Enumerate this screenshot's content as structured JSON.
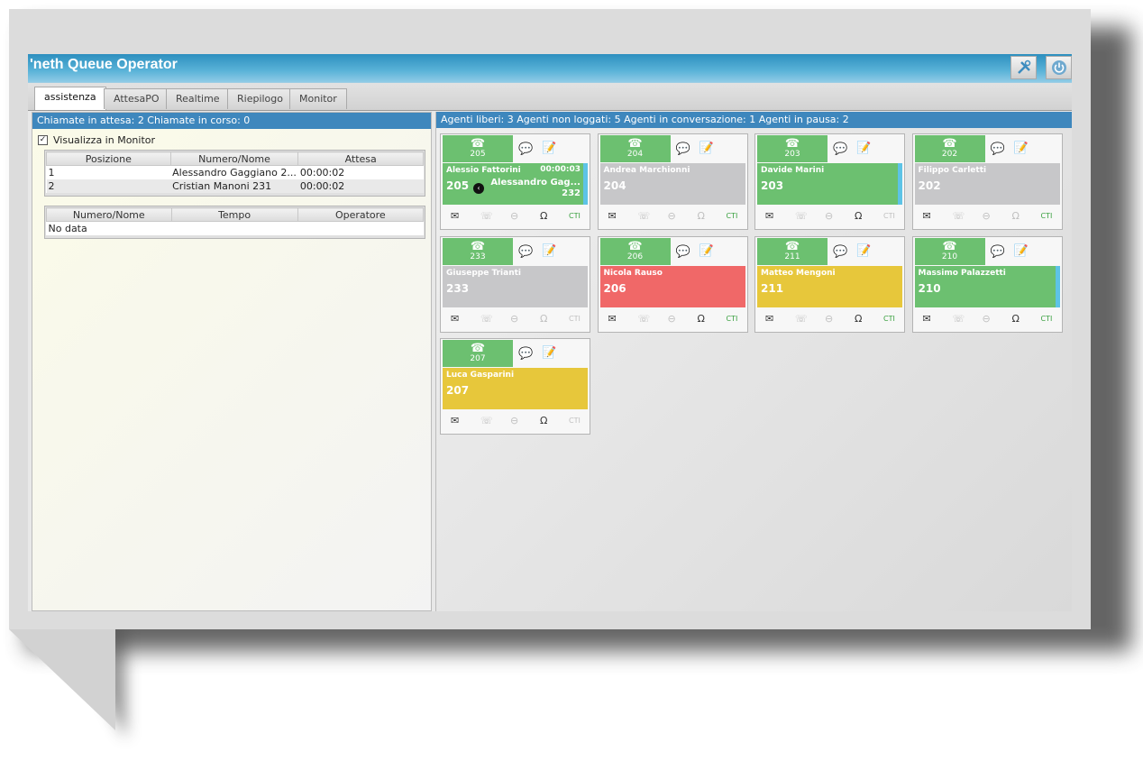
{
  "app": {
    "title": "'neth Queue Operator",
    "settings_icon": "tools-icon",
    "power_icon": "power-icon"
  },
  "tabs": [
    "assistenza",
    "AttesaPO",
    "Realtime",
    "Riepilogo",
    "Monitor"
  ],
  "left": {
    "header": "Chiamate in attesa: 2 Chiamate in corso: 0",
    "checkbox_label": "Visualizza in Monitor",
    "checkbox_checked": true,
    "waiting_table": {
      "columns": [
        "Posizione",
        "Numero/Nome",
        "Attesa"
      ],
      "rows": [
        [
          "1",
          "Alessandro Gaggiano 2...",
          "00:00:02"
        ],
        [
          "2",
          "Cristian Manoni 231",
          "00:00:02"
        ]
      ]
    },
    "calls_table": {
      "columns": [
        "Numero/Nome",
        "Tempo",
        "Operatore"
      ],
      "empty": "No data"
    }
  },
  "right": {
    "header": "Agenti liberi: 3 Agenti non loggati: 5 Agenti in conversazione: 1 Agenti in pausa: 2",
    "cti_label": "CTI",
    "agents": [
      {
        "ext": "205",
        "name": "Alessio Fattorini",
        "state": "green",
        "timer": "00:00:03",
        "peer_name": "Alessandro Gag...",
        "peer_ext": "232",
        "stripe": true,
        "headset_active": true,
        "cti_active": true
      },
      {
        "ext": "204",
        "name": "Andrea Marchionni",
        "state": "grey",
        "stripe": false,
        "headset_active": false,
        "cti_active": true
      },
      {
        "ext": "203",
        "name": "Davide Marini",
        "state": "green",
        "stripe": true,
        "headset_active": true,
        "cti_active": false
      },
      {
        "ext": "202",
        "name": "Filippo Carletti",
        "state": "grey",
        "stripe": false,
        "headset_active": false,
        "cti_active": true
      },
      {
        "ext": "233",
        "name": "Giuseppe Trianti",
        "state": "grey",
        "stripe": false,
        "headset_active": false,
        "cti_active": false
      },
      {
        "ext": "206",
        "name": "Nicola Rauso",
        "state": "red",
        "stripe": false,
        "headset_active": true,
        "cti_active": true
      },
      {
        "ext": "211",
        "name": "Matteo Mengoni",
        "state": "yellow",
        "stripe": false,
        "headset_active": true,
        "cti_active": true
      },
      {
        "ext": "210",
        "name": "Massimo Palazzetti",
        "state": "green",
        "stripe": true,
        "headset_active": true,
        "cti_active": true
      },
      {
        "ext": "207",
        "name": "Luca Gasparini",
        "state": "yellow",
        "stripe": false,
        "headset_active": true,
        "cti_active": false
      }
    ]
  }
}
